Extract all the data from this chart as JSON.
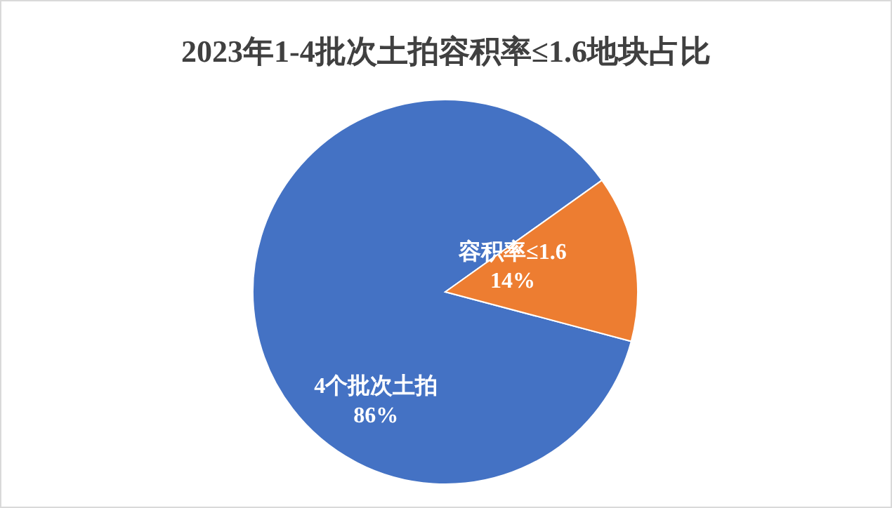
{
  "chart_data": {
    "type": "pie",
    "title": "2023年1-4批次土拍容积率≤1.6地块占比",
    "categories": [
      "4个批次土拍",
      "容积率≤1.6"
    ],
    "values": [
      86,
      14
    ],
    "colors": [
      "#4472c4",
      "#ed7d31"
    ],
    "value_labels": [
      "86%",
      "14%"
    ],
    "legend": false
  }
}
